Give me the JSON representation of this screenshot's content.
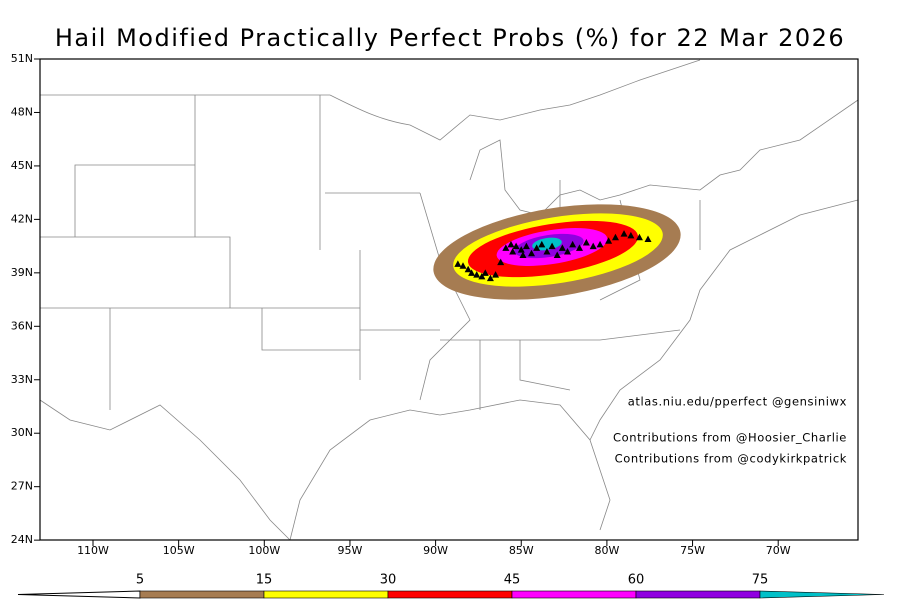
{
  "title": "Hail Modified Practically Perfect Probs (%) for 22 Mar 2026",
  "latitude_ticks": [
    {
      "value": 51,
      "label": "51N"
    },
    {
      "value": 48,
      "label": "48N"
    },
    {
      "value": 45,
      "label": "45N"
    },
    {
      "value": 42,
      "label": "42N"
    },
    {
      "value": 39,
      "label": "39N"
    },
    {
      "value": 36,
      "label": "36N"
    },
    {
      "value": 33,
      "label": "33N"
    },
    {
      "value": 30,
      "label": "30N"
    },
    {
      "value": 27,
      "label": "27N"
    },
    {
      "value": 24,
      "label": "24N"
    }
  ],
  "longitude_ticks": [
    {
      "value": -110,
      "label": "110W"
    },
    {
      "value": -105,
      "label": "105W"
    },
    {
      "value": -100,
      "label": "100W"
    },
    {
      "value": -95,
      "label": "95W"
    },
    {
      "value": -90,
      "label": "90W"
    },
    {
      "value": -85,
      "label": "85W"
    },
    {
      "value": -80,
      "label": "80W"
    },
    {
      "value": -75,
      "label": "75W"
    },
    {
      "value": -70,
      "label": "70W"
    }
  ],
  "credits": [
    "atlas.niu.edu/pperfect @gensiniwx",
    "Contributions from @Hoosier_Charlie",
    "Contributions from @codykirkpatrick"
  ],
  "colorbar": {
    "levels": [
      5,
      15,
      30,
      45,
      60,
      75
    ],
    "colors": [
      "#a67c52",
      "#ffff00",
      "#ff0000",
      "#ff00ff",
      "#9000e0",
      "#00c0c8"
    ]
  },
  "reports": [
    [
      -88.7,
      39.5
    ],
    [
      -88.4,
      39.4
    ],
    [
      -88.1,
      39.2
    ],
    [
      -87.9,
      39.0
    ],
    [
      -87.6,
      38.9
    ],
    [
      -87.3,
      38.8
    ],
    [
      -87.1,
      39.0
    ],
    [
      -86.8,
      38.7
    ],
    [
      -86.5,
      38.9
    ],
    [
      -86.2,
      39.6
    ],
    [
      -85.9,
      40.4
    ],
    [
      -85.6,
      40.6
    ],
    [
      -85.3,
      40.5
    ],
    [
      -85.0,
      40.3
    ],
    [
      -84.7,
      40.5
    ],
    [
      -84.4,
      40.1
    ],
    [
      -84.1,
      40.4
    ],
    [
      -83.8,
      40.6
    ],
    [
      -83.5,
      40.2
    ],
    [
      -83.2,
      40.5
    ],
    [
      -82.9,
      40.0
    ],
    [
      -82.6,
      40.4
    ],
    [
      -82.3,
      40.2
    ],
    [
      -82.0,
      40.6
    ],
    [
      -81.6,
      40.4
    ],
    [
      -81.2,
      40.7
    ],
    [
      -80.8,
      40.5
    ],
    [
      -80.4,
      40.6
    ],
    [
      -79.9,
      40.8
    ],
    [
      -79.5,
      41.0
    ],
    [
      -79.0,
      41.2
    ],
    [
      -78.6,
      41.1
    ],
    [
      -78.1,
      41.0
    ],
    [
      -77.6,
      40.9
    ],
    [
      -84.9,
      40.0
    ],
    [
      -85.5,
      40.2
    ]
  ]
}
